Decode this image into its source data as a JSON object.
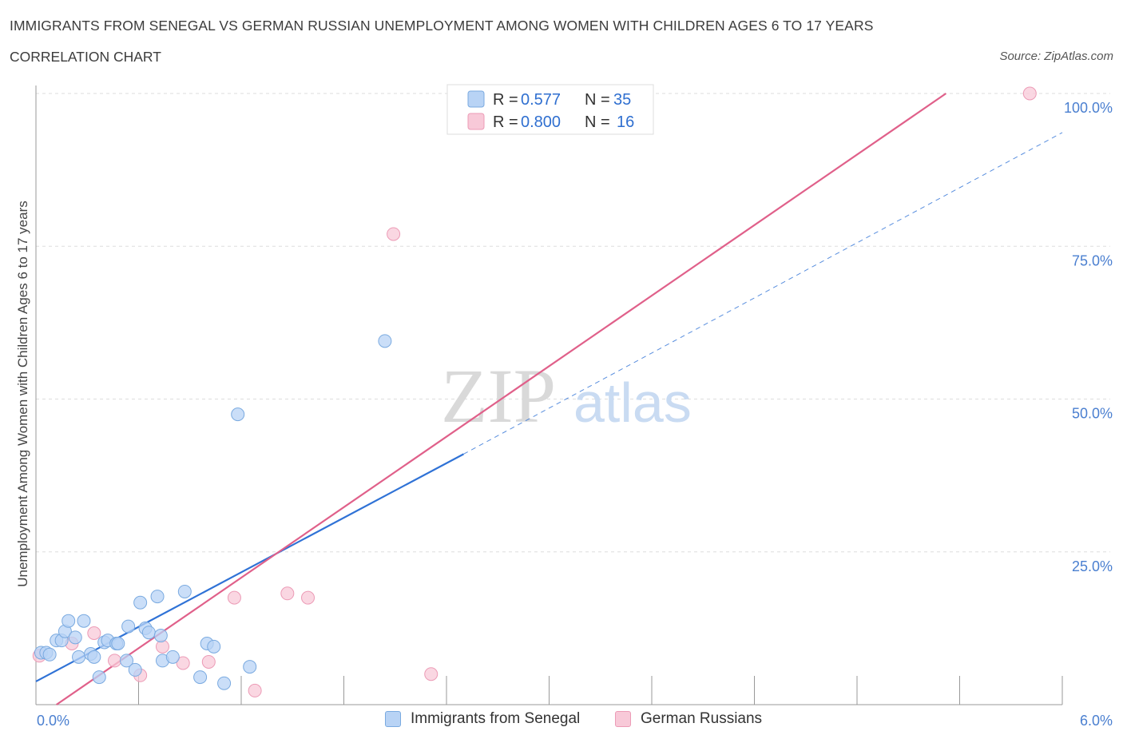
{
  "header": {
    "title": "IMMIGRANTS FROM SENEGAL VS GERMAN RUSSIAN UNEMPLOYMENT AMONG WOMEN WITH CHILDREN AGES 6 TO 17 YEARS",
    "subtitle": "CORRELATION CHART",
    "source": "Source: ZipAtlas.com"
  },
  "legend_box": {
    "rows": [
      {
        "r_label": "R = ",
        "r_value": "0.577",
        "n_label": "N = ",
        "n_value": "35"
      },
      {
        "r_label": "R = ",
        "r_value": "0.800",
        "n_label": "N = ",
        "n_value": "16"
      }
    ]
  },
  "bottom_legend": {
    "items": [
      {
        "label": "Immigrants from Senegal"
      },
      {
        "label": "German Russians"
      }
    ]
  },
  "watermark": {
    "zip": "ZIP",
    "atlas": "atlas"
  },
  "colors": {
    "blue_fill": "#b8d3f5",
    "blue_stroke": "#7aaae0",
    "blue_line": "#2f72d6",
    "pink_fill": "#f8c9d8",
    "pink_stroke": "#ec9bb6",
    "pink_line": "#e0608a",
    "grid": "#dddddd",
    "axis": "#999999",
    "tick_text": "#4a7fd0"
  },
  "chart_data": {
    "type": "scatter",
    "title": "IMMIGRANTS FROM SENEGAL VS GERMAN RUSSIAN UNEMPLOYMENT AMONG WOMEN WITH CHILDREN AGES 6 TO 17 YEARS",
    "xlabel": "",
    "ylabel": "Unemployment Among Women with Children Ages 6 to 17 years",
    "xlim": [
      0,
      6
    ],
    "ylim": [
      0,
      100
    ],
    "x_tick_labels": [
      "0.0%",
      "6.0%"
    ],
    "y_tick_labels": [
      "100.0%",
      "75.0%",
      "50.0%",
      "25.0%"
    ],
    "y_ticks": [
      100,
      75,
      50,
      25
    ],
    "grid": true,
    "legend_position": "bottom-center",
    "series": [
      {
        "name": "Immigrants from Senegal",
        "color": "#b8d3f5",
        "points": [
          {
            "x": 0.03,
            "y": 8.5
          },
          {
            "x": 0.06,
            "y": 8.5
          },
          {
            "x": 0.08,
            "y": 8.2
          },
          {
            "x": 0.12,
            "y": 10.5
          },
          {
            "x": 0.15,
            "y": 10.5
          },
          {
            "x": 0.17,
            "y": 12.0
          },
          {
            "x": 0.19,
            "y": 13.7
          },
          {
            "x": 0.23,
            "y": 11.0
          },
          {
            "x": 0.25,
            "y": 7.8
          },
          {
            "x": 0.28,
            "y": 13.7
          },
          {
            "x": 0.32,
            "y": 8.3
          },
          {
            "x": 0.34,
            "y": 7.8
          },
          {
            "x": 0.37,
            "y": 4.5
          },
          {
            "x": 0.4,
            "y": 10.2
          },
          {
            "x": 0.42,
            "y": 10.5
          },
          {
            "x": 0.47,
            "y": 10.0
          },
          {
            "x": 0.48,
            "y": 10.0
          },
          {
            "x": 0.53,
            "y": 7.2
          },
          {
            "x": 0.54,
            "y": 12.8
          },
          {
            "x": 0.58,
            "y": 5.7
          },
          {
            "x": 0.61,
            "y": 16.7
          },
          {
            "x": 0.64,
            "y": 12.5
          },
          {
            "x": 0.66,
            "y": 11.8
          },
          {
            "x": 0.71,
            "y": 17.7
          },
          {
            "x": 0.73,
            "y": 11.3
          },
          {
            "x": 0.74,
            "y": 7.2
          },
          {
            "x": 0.8,
            "y": 7.8
          },
          {
            "x": 0.87,
            "y": 18.5
          },
          {
            "x": 0.96,
            "y": 4.5
          },
          {
            "x": 1.0,
            "y": 10.0
          },
          {
            "x": 1.04,
            "y": 9.5
          },
          {
            "x": 1.1,
            "y": 3.5
          },
          {
            "x": 1.18,
            "y": 47.5
          },
          {
            "x": 1.25,
            "y": 6.2
          },
          {
            "x": 2.04,
            "y": 59.5
          }
        ],
        "trend": {
          "x0": 0.0,
          "y0": 3.8,
          "x1": 2.5,
          "y1": 41.0,
          "dashed_to_x": 6.0,
          "dashed_to_y": 93.6
        }
      },
      {
        "name": "German Russians",
        "color": "#f8c9d8",
        "points": [
          {
            "x": 0.02,
            "y": 8.0
          },
          {
            "x": 0.21,
            "y": 10.0
          },
          {
            "x": 0.34,
            "y": 11.7
          },
          {
            "x": 0.46,
            "y": 7.2
          },
          {
            "x": 0.61,
            "y": 4.8
          },
          {
            "x": 0.74,
            "y": 9.5
          },
          {
            "x": 0.86,
            "y": 6.8
          },
          {
            "x": 1.01,
            "y": 7.0
          },
          {
            "x": 1.16,
            "y": 17.5
          },
          {
            "x": 1.28,
            "y": 2.3
          },
          {
            "x": 1.47,
            "y": 18.2
          },
          {
            "x": 1.59,
            "y": 17.5
          },
          {
            "x": 2.09,
            "y": 77.0
          },
          {
            "x": 2.31,
            "y": 5.0
          },
          {
            "x": 2.86,
            "y": 100.0
          },
          {
            "x": 5.81,
            "y": 100.0
          }
        ],
        "trend": {
          "x0": 0.12,
          "y0": 0.0,
          "x1": 5.32,
          "y1": 100.0
        }
      }
    ]
  }
}
